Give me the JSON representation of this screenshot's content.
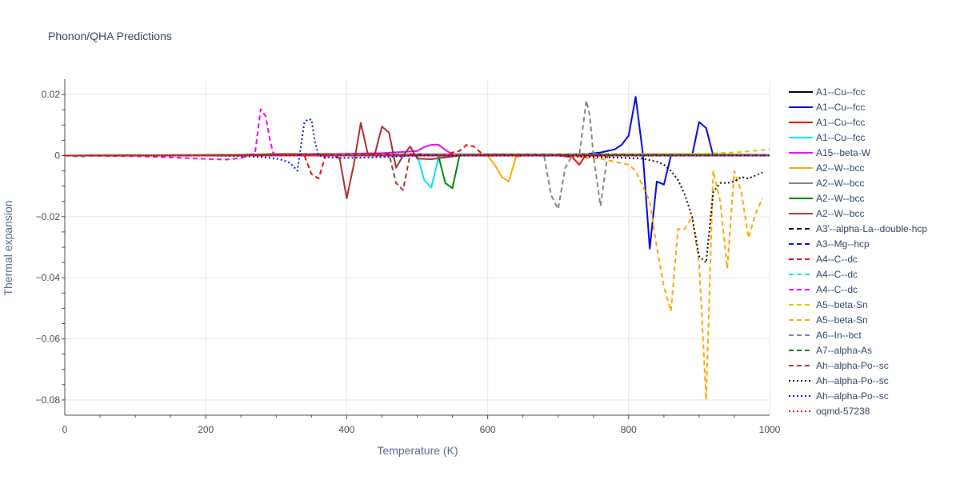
{
  "chart_data": {
    "type": "line",
    "title": "Phonon/QHA Predictions",
    "xlabel": "Temperature (K)",
    "ylabel": "Thermal expansion",
    "xlim": [
      0,
      1000
    ],
    "ylim": [
      -0.085,
      0.025
    ],
    "xticks": [
      0,
      200,
      400,
      600,
      800,
      1000
    ],
    "xtick_labels": [
      "0",
      "200",
      "400",
      "600",
      "800",
      "1000"
    ],
    "yticks": [
      0.02,
      0,
      -0.02,
      -0.04,
      -0.06,
      -0.08
    ],
    "ytick_labels": [
      "0.02",
      "0",
      "−0.02",
      "−0.04",
      "−0.06",
      "−0.08"
    ],
    "grid": true,
    "legend_position": "right",
    "series": [
      {
        "name": "A1--Cu--fcc",
        "color": "#000000",
        "dash": "solid",
        "x": [
          0,
          100,
          200,
          300,
          400,
          500,
          600,
          700,
          800,
          900,
          1000
        ],
        "y": [
          0,
          0.0001,
          0.0002,
          0.0003,
          0.0003,
          0.0004,
          0.0004,
          0.0004,
          0.0004,
          0.0003,
          0.0002
        ]
      },
      {
        "name": "A1--Cu--fcc",
        "color": "#0000dd",
        "dash": "solid",
        "x": [
          0,
          100,
          200,
          300,
          400,
          500,
          600,
          700,
          740,
          760,
          780,
          790,
          800,
          810,
          820,
          830,
          840,
          850,
          860,
          870,
          880,
          890,
          900,
          910,
          920,
          1000
        ],
        "y": [
          0,
          0,
          0,
          0.0001,
          0.0002,
          0.0003,
          0.0003,
          0.0003,
          0.0005,
          0.001,
          0.002,
          0.0035,
          0.0065,
          0.0192,
          0.001,
          -0.0305,
          -0.0085,
          -0.0095,
          0,
          0,
          0,
          0,
          0.011,
          0.009,
          0,
          0
        ]
      },
      {
        "name": "A1--Cu--fcc",
        "color": "#ee0000",
        "dash": "solid",
        "x": [
          0,
          100,
          200,
          300,
          400,
          500,
          600,
          700,
          720,
          730,
          740,
          750,
          800,
          900,
          1000
        ],
        "y": [
          0,
          0,
          0,
          0,
          0,
          0,
          0,
          0,
          -0.0005,
          -0.003,
          0.0005,
          0,
          0,
          0,
          0
        ]
      },
      {
        "name": "A1--Cu--fcc",
        "color": "#00e5ee",
        "dash": "solid",
        "x": [
          0,
          100,
          200,
          300,
          400,
          480,
          500,
          510,
          520,
          530,
          540,
          560,
          600,
          700,
          800,
          900,
          1000
        ],
        "y": [
          0,
          0,
          0,
          0,
          0,
          0,
          0.0002,
          -0.008,
          -0.0105,
          -0.001,
          0,
          0,
          0,
          0,
          0,
          0,
          0
        ]
      },
      {
        "name": "A15--beta-W",
        "color": "#ee00ee",
        "dash": "solid",
        "x": [
          0,
          100,
          200,
          300,
          350,
          400,
          450,
          480,
          500,
          510,
          520,
          530,
          540,
          550,
          560,
          600,
          700,
          800,
          900,
          1000
        ],
        "y": [
          0,
          0,
          0,
          0.0002,
          0.0004,
          0.0006,
          0.0008,
          0.0012,
          0.0015,
          0.0028,
          0.0035,
          0.0036,
          0.0018,
          0.0005,
          0,
          0,
          0,
          0,
          0,
          0
        ]
      },
      {
        "name": "A2--W--bcc",
        "color": "#ffa500",
        "dash": "solid",
        "x": [
          0,
          100,
          200,
          300,
          400,
          500,
          600,
          610,
          620,
          630,
          640,
          650,
          700,
          800,
          900,
          1000
        ],
        "y": [
          0,
          0,
          0,
          0,
          0,
          0,
          0,
          -0.003,
          -0.007,
          -0.0085,
          -0.0005,
          0,
          0,
          0,
          0,
          0
        ]
      },
      {
        "name": "A2--W--bcc",
        "color": "#808080",
        "dash": "solid",
        "x": [
          0,
          100,
          200,
          300,
          400,
          500,
          600,
          700,
          800,
          900,
          1000
        ],
        "y": [
          0,
          0.0001,
          0.0002,
          0.0003,
          0.0004,
          0.0004,
          0.0004,
          0.0004,
          0.0003,
          0.0002,
          0.0001
        ]
      },
      {
        "name": "A2--W--bcc",
        "color": "#008000",
        "dash": "solid",
        "x": [
          0,
          100,
          200,
          300,
          400,
          500,
          530,
          540,
          550,
          560,
          600,
          700,
          800,
          900,
          1000
        ],
        "y": [
          0,
          0,
          0,
          0,
          0,
          0,
          0,
          -0.009,
          -0.0107,
          0,
          0.0003,
          0.0003,
          0.0003,
          0.0002,
          0
        ]
      },
      {
        "name": "A2--W--bcc",
        "color": "#a52a2a",
        "dash": "solid",
        "x": [
          0,
          100,
          200,
          300,
          380,
          390,
          400,
          410,
          420,
          430,
          440,
          450,
          460,
          470,
          480,
          490,
          500,
          520,
          560,
          600,
          700,
          800,
          900,
          1000
        ],
        "y": [
          0,
          0,
          0,
          0.0005,
          0.0005,
          -0.001,
          -0.014,
          -0.003,
          0.0107,
          0.0005,
          0.0005,
          0.0095,
          0.0075,
          -0.004,
          0,
          0.003,
          -0.001,
          -0.0012,
          0,
          0.0003,
          0.0003,
          0.0002,
          0,
          0
        ]
      },
      {
        "name": "A3'--alpha-La--double-hcp",
        "color": "#000000",
        "dash": "dash",
        "x": [
          0,
          200,
          400,
          600,
          800,
          1000
        ],
        "y": [
          0,
          0.0001,
          0.0001,
          0.0001,
          0.0001,
          0.0001
        ]
      },
      {
        "name": "A3--Mg--hcp",
        "color": "#0000dd",
        "dash": "dash",
        "x": [
          0,
          200,
          400,
          600,
          800,
          1000
        ],
        "y": [
          0,
          0.0001,
          0.0002,
          0.0002,
          0.0002,
          0.0001
        ]
      },
      {
        "name": "A4--C--dc",
        "color": "#ee0000",
        "dash": "dash",
        "x": [
          0,
          100,
          200,
          300,
          340,
          350,
          360,
          370,
          380,
          400,
          450,
          500,
          540,
          550,
          560,
          570,
          580,
          590,
          600,
          700,
          800,
          900,
          1000
        ],
        "y": [
          0,
          0,
          0,
          0,
          0,
          -0.006,
          -0.0075,
          0,
          0,
          0,
          0,
          0,
          0,
          0.001,
          0.0015,
          0.0035,
          0.003,
          0.001,
          0,
          0,
          0,
          0,
          0
        ]
      },
      {
        "name": "A4--C--dc",
        "color": "#00e5ee",
        "dash": "dash",
        "x": [
          0,
          10,
          20,
          30,
          40,
          100,
          200,
          300,
          400,
          500,
          600,
          700,
          800,
          900,
          1000
        ],
        "y": [
          0,
          -0.0002,
          -0.0005,
          -0.0002,
          0,
          0,
          0,
          0,
          0,
          0,
          0,
          0,
          0,
          0,
          0
        ]
      },
      {
        "name": "A4--C--dc",
        "color": "#ee00ee",
        "dash": "dash",
        "x": [
          0,
          100,
          150,
          200,
          230,
          250,
          260,
          270,
          278,
          285,
          290,
          295,
          300,
          310,
          400,
          500,
          600,
          700,
          800,
          900,
          1000
        ],
        "y": [
          0,
          -0.0002,
          -0.0006,
          -0.0011,
          -0.0013,
          -0.0008,
          0,
          0.001,
          0.0152,
          0.0128,
          0.0065,
          0.0012,
          0,
          0,
          0,
          0,
          0,
          0,
          0,
          0,
          0
        ]
      },
      {
        "name": "A5--beta-Sn",
        "color": "#cccc00",
        "dash": "dash",
        "x": [
          0,
          200,
          400,
          600,
          800,
          900,
          950,
          1000
        ],
        "y": [
          0,
          0.0001,
          0.0002,
          0.0003,
          0.0005,
          0.0006,
          0.001,
          0.002
        ]
      },
      {
        "name": "A5--beta-Sn",
        "color": "#ffa500",
        "dash": "dash",
        "x": [
          0,
          100,
          200,
          300,
          400,
          500,
          600,
          700,
          760,
          780,
          800,
          810,
          820,
          830,
          840,
          850,
          860,
          870,
          880,
          890,
          900,
          910,
          920,
          930,
          940,
          950,
          960,
          970,
          980,
          990
        ],
        "y": [
          0,
          0,
          0,
          0,
          0,
          0,
          0,
          0,
          -0.001,
          -0.002,
          -0.003,
          -0.005,
          -0.01,
          -0.015,
          -0.03,
          -0.043,
          -0.051,
          -0.024,
          -0.024,
          -0.02,
          -0.035,
          -0.08,
          -0.005,
          -0.015,
          -0.037,
          -0.005,
          -0.012,
          -0.027,
          -0.019,
          -0.014
        ]
      },
      {
        "name": "A6--In--bct",
        "color": "#808080",
        "dash": "dash",
        "x": [
          0,
          100,
          200,
          300,
          400,
          500,
          600,
          680,
          690,
          700,
          710,
          720,
          730,
          740,
          745,
          750,
          760,
          770,
          780,
          800,
          900,
          1000
        ],
        "y": [
          0,
          0,
          0,
          0,
          0,
          0,
          0,
          0,
          -0.013,
          -0.0175,
          -0.004,
          0,
          0,
          0.018,
          0.013,
          0,
          -0.0165,
          0,
          0,
          0,
          0,
          0
        ]
      },
      {
        "name": "A7--alpha-As",
        "color": "#008000",
        "dash": "dash",
        "x": [
          0,
          200,
          400,
          600,
          800,
          1000
        ],
        "y": [
          0,
          0.0001,
          0.0002,
          0.0002,
          0.0002,
          0.0001
        ]
      },
      {
        "name": "Ah--alpha-Po--sc",
        "color": "#a52a2a",
        "dash": "dash",
        "x": [
          0,
          100,
          200,
          300,
          400,
          440,
          460,
          470,
          480,
          490,
          500,
          520,
          600,
          700,
          800,
          900,
          1000
        ],
        "y": [
          0,
          0,
          0,
          0.0002,
          0.0005,
          0.0005,
          0.0005,
          -0.009,
          -0.0113,
          0.0005,
          0.0005,
          0.0002,
          0,
          0,
          0,
          0,
          0
        ]
      },
      {
        "name": "Ah--alpha-Po--sc",
        "color": "#000000",
        "dash": "dot",
        "x": [
          0,
          100,
          200,
          300,
          400,
          500,
          600,
          700,
          760,
          800,
          820,
          840,
          850,
          860,
          870,
          880,
          890,
          900,
          910,
          920,
          930,
          940,
          950,
          960,
          970,
          980,
          990
        ],
        "y": [
          0,
          0,
          0,
          0,
          0,
          0,
          0,
          0,
          -0.0005,
          -0.0008,
          -0.001,
          -0.002,
          -0.003,
          -0.005,
          -0.008,
          -0.013,
          -0.02,
          -0.033,
          -0.035,
          -0.012,
          -0.009,
          -0.009,
          -0.0085,
          -0.007,
          -0.0075,
          -0.0065,
          -0.0055
        ]
      },
      {
        "name": "Ah--alpha-Po--sc",
        "color": "#0000dd",
        "dash": "dot",
        "x": [
          0,
          100,
          200,
          250,
          280,
          300,
          310,
          320,
          330,
          340,
          345,
          350,
          355,
          360,
          370,
          400,
          450,
          500,
          600,
          700,
          800,
          900,
          1000
        ],
        "y": [
          0,
          0,
          0,
          -0.0002,
          -0.0005,
          -0.001,
          -0.0015,
          -0.0025,
          -0.005,
          0.011,
          0.0118,
          0.0118,
          0.0045,
          0,
          -0.0005,
          -0.0008,
          -0.0005,
          0,
          0,
          0,
          0,
          0,
          0
        ]
      },
      {
        "name": "oqmd-57238",
        "color": "#ee0000",
        "dash": "dot",
        "x": [
          0,
          200,
          400,
          600,
          800,
          1000
        ],
        "y": [
          0,
          0,
          0,
          0,
          0,
          0
        ]
      }
    ]
  }
}
